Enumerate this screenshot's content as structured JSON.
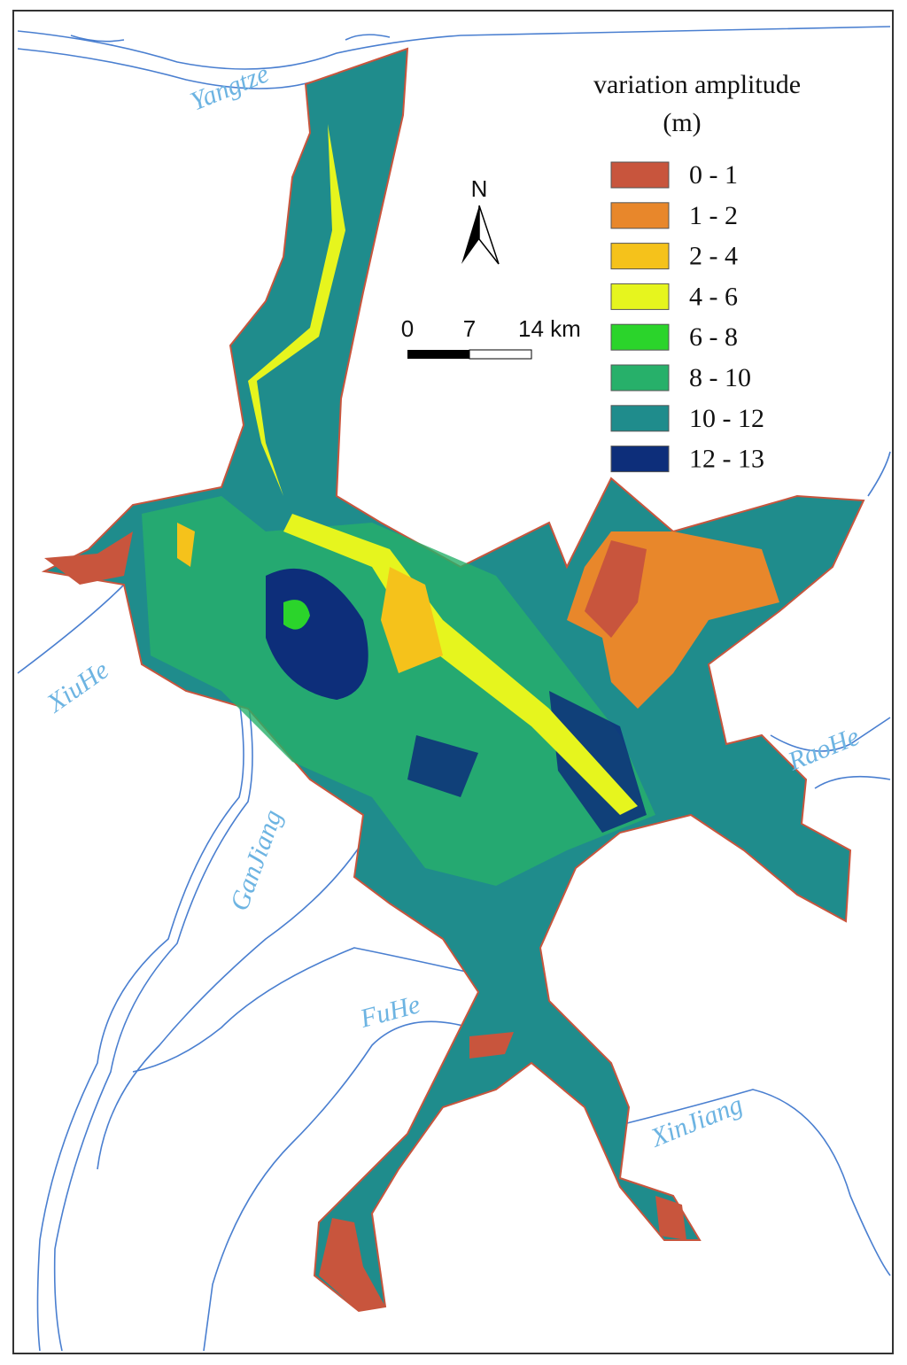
{
  "legend": {
    "title": "variation amplitude",
    "unit": "(m)",
    "items": [
      {
        "label": "0 - 1",
        "color": "#c8553d"
      },
      {
        "label": "1 - 2",
        "color": "#e8872b"
      },
      {
        "label": "2 - 4",
        "color": "#f5c21b"
      },
      {
        "label": "4 - 6",
        "color": "#e6f51e"
      },
      {
        "label": "6 - 8",
        "color": "#2bd42b"
      },
      {
        "label": "8 - 10",
        "color": "#27b06a"
      },
      {
        "label": "10 - 12",
        "color": "#1f8c8c"
      },
      {
        "label": "12 - 13",
        "color": "#0d2e7a"
      }
    ]
  },
  "north_arrow": "N",
  "scale_bar": [
    "0",
    "7",
    "14 km"
  ],
  "rivers": [
    "Yangtze",
    "XiuHe",
    "GanJiang",
    "FuHe",
    "RaoHe",
    "XinJiang"
  ]
}
